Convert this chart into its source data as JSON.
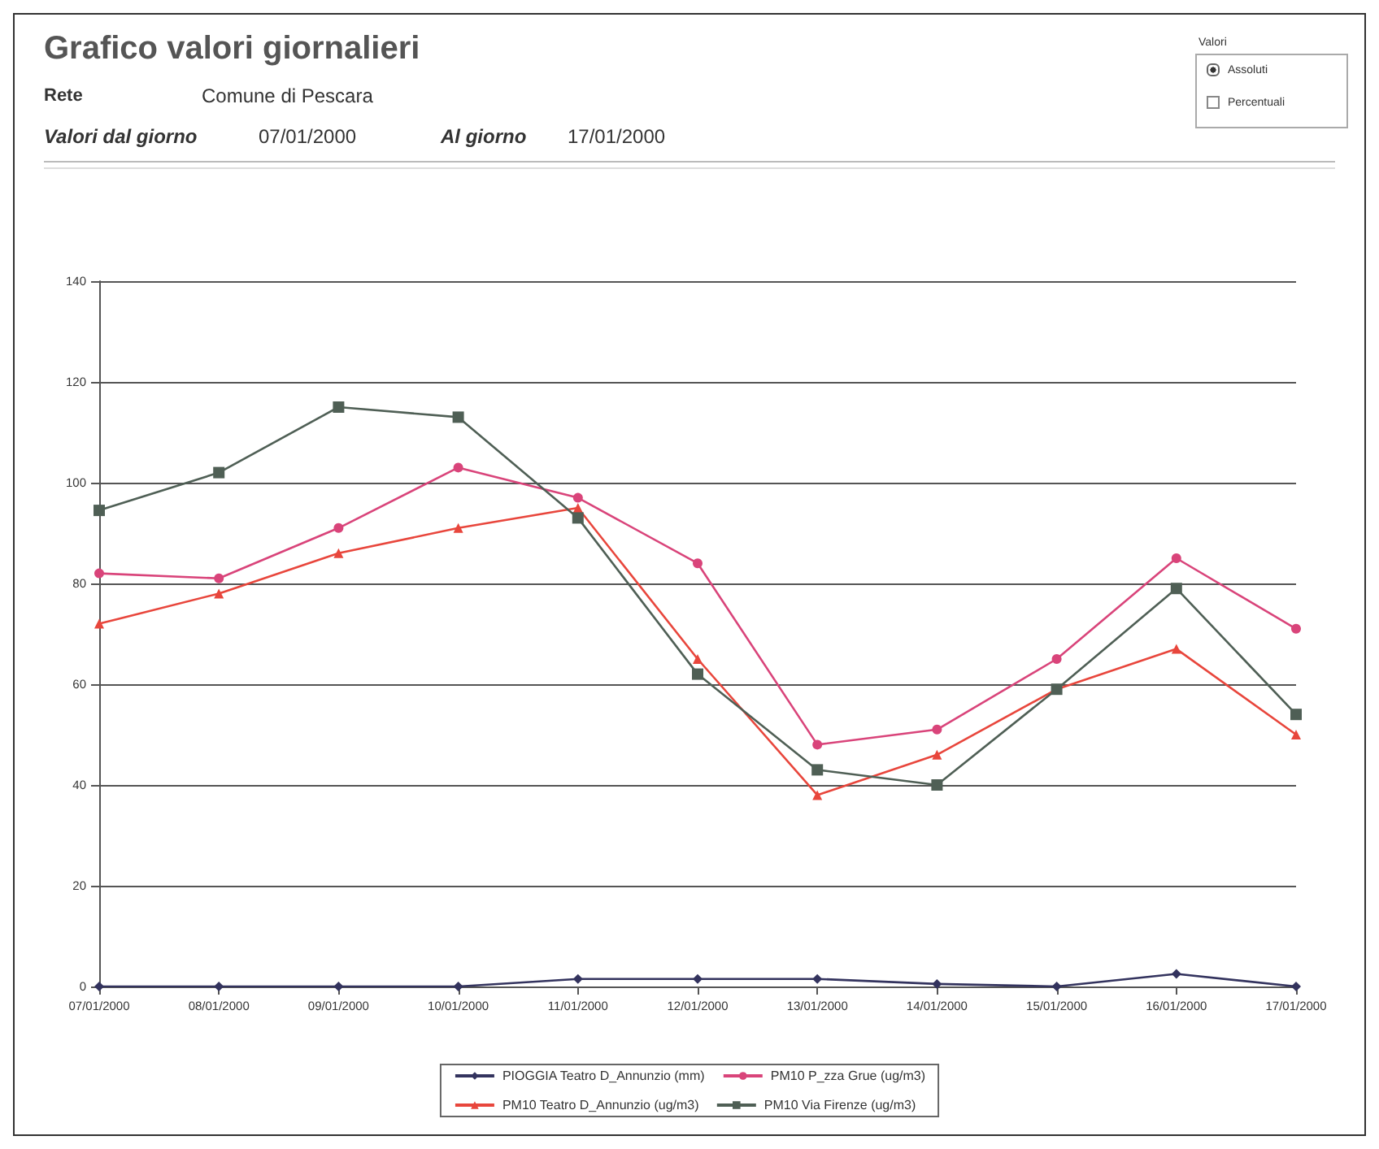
{
  "chart_data": {
    "type": "line",
    "title": "Grafico valori giornalieri",
    "annotations": [
      "Rete",
      "Comune di Pescara",
      "Valori dal giorno",
      "07/01/2000",
      "Al giorno",
      "17/01/2000",
      "Valori",
      "Assoluti",
      "Percentuali"
    ],
    "categories": [
      "07/01/2000",
      "08/01/2000",
      "09/01/2000",
      "10/01/2000",
      "11/01/2000",
      "12/01/2000",
      "13/01/2000",
      "14/01/2000",
      "15/01/2000",
      "16/01/2000",
      "17/01/2000"
    ],
    "series": [
      {
        "name": "PIOGGIA Teatro D_Annunzio (mm)",
        "color": "#33335e",
        "marker": "diamond",
        "values": [
          0,
          0,
          0,
          0,
          1.5,
          1.5,
          1.5,
          0.5,
          0,
          2.5,
          0
        ]
      },
      {
        "name": "PM10 P_zza Grue (ug/m3)",
        "color": "#d9447a",
        "marker": "circle",
        "values": [
          82,
          81,
          91,
          103,
          97,
          84,
          48,
          51,
          65,
          85,
          71
        ]
      },
      {
        "name": "PM10 Teatro D_Annunzio (ug/m3)",
        "color": "#e8463c",
        "marker": "triangle",
        "values": [
          72,
          78,
          86,
          91,
          95,
          65,
          38,
          46,
          59,
          67,
          50
        ]
      },
      {
        "name": "PM10 Via Firenze (ug/m3)",
        "color": "#4f5f55",
        "marker": "square",
        "values": [
          94.5,
          102,
          115,
          113,
          93,
          62,
          43,
          40,
          59,
          79,
          54
        ]
      }
    ],
    "ylim": [
      0,
      140
    ],
    "yticks": [
      0,
      20,
      40,
      60,
      80,
      100,
      120,
      140
    ],
    "grid": "y",
    "legend": "bottom",
    "line_style": "solid"
  }
}
